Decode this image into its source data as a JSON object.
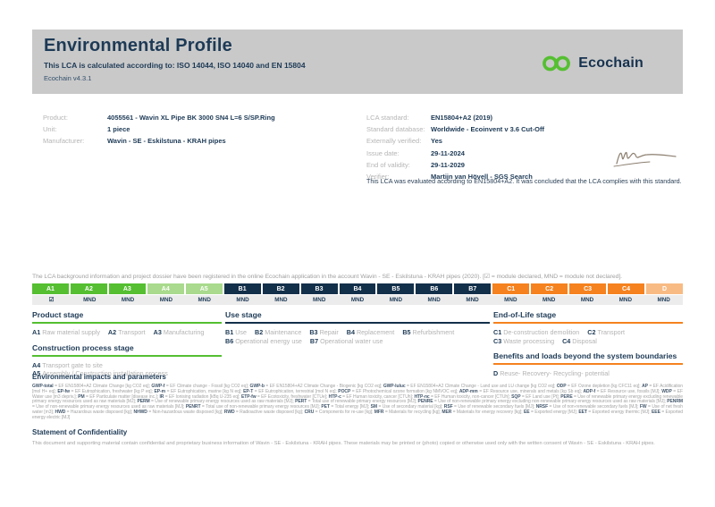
{
  "header": {
    "title": "Environmental Profile",
    "subtitle": "This LCA is calculated according to: ISO 14044, ISO 14040 and EN 15804",
    "version": "Ecochain v4.3.1",
    "logo_text": "Ecochain",
    "brand_green": "#55bf31",
    "brand_navy": "#16324f"
  },
  "product_info": {
    "rows": [
      {
        "label": "Product:",
        "value": "4055561 - Wavin XL Pipe BK 3000 SN4 L=6 S/SP.Ring"
      },
      {
        "label": "Unit:",
        "value": "1 piece"
      },
      {
        "label": "Manufacturer:",
        "value": "Wavin - SE - Eskilstuna - KRAH pipes"
      }
    ]
  },
  "lca_info": {
    "rows": [
      {
        "label": "LCA standard:",
        "value": "EN15804+A2 (2019)"
      },
      {
        "label": "Standard database:",
        "value": "Worldwide - Ecoinvent v 3.6 Cut-Off"
      },
      {
        "label": "Externally verified:",
        "value": "Yes"
      },
      {
        "label": "Issue date:",
        "value": "29-11-2024"
      },
      {
        "label": "End of validity:",
        "value": "29-11-2029"
      },
      {
        "label": "Verifier:",
        "value": "Martijn van Hövell - SGS Search"
      }
    ],
    "evaluation_note": "This LCA was evaluated according to EN15804+A2. It was concluded that the LCA complies with this standard."
  },
  "registration_note": "The LCA background information and project dossier have been registered in the online Ecochain application in the account Wavin - SE - Eskilstuna - KRAH pipes (2020). [☑ = module declared, MND = module not declared].",
  "module_table": {
    "modules": [
      {
        "code": "A1",
        "status": "☑"
      },
      {
        "code": "A2",
        "status": "MND"
      },
      {
        "code": "A3",
        "status": "MND"
      },
      {
        "code": "A4",
        "status": "MND"
      },
      {
        "code": "A5",
        "status": "MND"
      },
      {
        "code": "B1",
        "status": "MND"
      },
      {
        "code": "B2",
        "status": "MND"
      },
      {
        "code": "B3",
        "status": "MND"
      },
      {
        "code": "B4",
        "status": "MND"
      },
      {
        "code": "B5",
        "status": "MND"
      },
      {
        "code": "B6",
        "status": "MND"
      },
      {
        "code": "B7",
        "status": "MND"
      },
      {
        "code": "C1",
        "status": "MND"
      },
      {
        "code": "C2",
        "status": "MND"
      },
      {
        "code": "C3",
        "status": "MND"
      },
      {
        "code": "C4",
        "status": "MND"
      },
      {
        "code": "D",
        "status": "MND"
      }
    ]
  },
  "stages": {
    "product": {
      "heading": "Product stage",
      "items": [
        {
          "code": "A1",
          "desc": "Raw material supply"
        },
        {
          "code": "A2",
          "desc": "Transport"
        },
        {
          "code": "A3",
          "desc": "Manufacturing"
        }
      ]
    },
    "construction": {
      "heading": "Construction process stage",
      "items": [
        {
          "code": "A4",
          "desc": "Transport gate to site"
        },
        {
          "code": "A5",
          "desc": "Assembly / Construction installation process"
        }
      ]
    },
    "use": {
      "heading": "Use stage",
      "items": [
        {
          "code": "B1",
          "desc": "Use"
        },
        {
          "code": "B2",
          "desc": "Maintenance"
        },
        {
          "code": "B3",
          "desc": "Repair"
        },
        {
          "code": "B4",
          "desc": "Replacement"
        },
        {
          "code": "B5",
          "desc": "Refurbishment"
        },
        {
          "code": "B6",
          "desc": "Operational energy use"
        },
        {
          "code": "B7",
          "desc": "Operational water use"
        }
      ]
    },
    "end_of_life": {
      "heading": "End-of-Life stage",
      "items": [
        {
          "code": "C1",
          "desc": "De-construction demolition"
        },
        {
          "code": "C2",
          "desc": "Transport"
        },
        {
          "code": "C3",
          "desc": "Waste processing"
        },
        {
          "code": "C4",
          "desc": "Disposal"
        }
      ]
    },
    "benefits": {
      "heading": "Benefits and loads beyond the system boundaries",
      "items": [
        {
          "code": "D",
          "desc": "Reuse- Recovery- Recycling- potential"
        }
      ]
    }
  },
  "impacts": {
    "heading": "Environmental impacts and parameters",
    "text": "GWP-total = EF EN15804+A2 Climate Change [kg CO2 eq]; GWP-f = EF Climate change - Fossil [kg CO2 eq]; GWP-b = EF EN15804+A2 Climate Change - Biogenic [kg CO2 eq]; GWP-luluc = EF EN15804+A2 Climate Change - Land use and LU change [kg CO2 eq]; ODP = EF Ozone depletion [kg CFC11 eq]; AP = EF Acidification [mol H+ eq]; EP-fw = EF Eutrophication, freshwater [kg P eq]; EP-m = EF Eutrophication, marine [kg N eq]; EP-T = EF Eutrophication, terrestrial [mol N eq]; POCP = EF Photochemical ozone formation [kg NMVOC eq]; ADP-mm = EF Resource use, minerals and metals [kg Sb eq]; ADP-f = EF Resource use, fossils [MJ]; WDP = EF Water use [m3 depriv.]; PM = EF Particulate matter [disease inc.]; IR = EF Ionising radiation [kBq U-235 eq]; ETP-fw = EF Ecotoxicity, freshwater [CTUe]; HTP-c = EF Human toxicity, cancer [CTUh]; HTP-nc = EF Human toxicity, non-cancer [CTUh]; SQP = EF Land use [Pt]; PERE = Use of renewable primary energy excluding renewable primary energy resources used as raw materials [MJ]; PERM = Use of renewable primary energy resources used as raw materials [MJ]; PERT = Total use of renewable primary energy resources [MJ]; PENRE = Use of non-renewable primary energy excluding non-renewable primary energy resources used as raw materials [MJ]; PENRM = Use of non-renewable primary energy resources used as raw materials [MJ]; PENRT = Total use of non-renewable primary energy resources [MJ]; PET = Total energy [MJ]; SM = Use of secondary material [kg]; RSF = Use of renewable secondary fuels [MJ]; NRSF = Use of non-renewable secondary fuels [MJ]; FW = Use of net fresh water [m3]; HWD = Hazardous waste disposed [kg]; NHWD = Non-hazardous waste disposed [kg]; RWD = Radioactive waste disposed [kg]; CRU = Components for re-use [kg]; MFR = Materials for recycling [kg]; MER = Materials for energy recovery [kg]; EE = Exported energy [MJ]; EET = Exported energy thermic [MJ]; EEE = Exported energy electric [MJ]"
  },
  "confidentiality": {
    "heading": "Statement of Confidentiality",
    "text": "This document and supporting material contain confidential and proprietary business information of Wavin - SE - Eskilstuna - KRAH pipes. These materials may be printed or (photo) copied or otherwise used only with the written consent of Wavin - SE - Eskilstuna - KRAH pipes."
  }
}
